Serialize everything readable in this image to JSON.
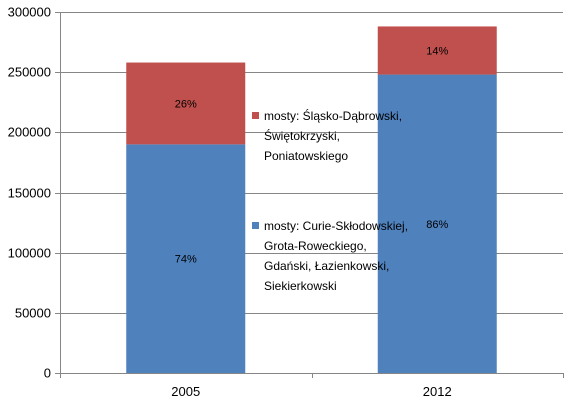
{
  "chart_data": {
    "type": "bar",
    "stacked": true,
    "categories": [
      "2005",
      "2012"
    ],
    "ylim": [
      0,
      300000
    ],
    "yticks": [
      "0",
      "50000",
      "100000",
      "150000",
      "200000",
      "250000",
      "300000"
    ],
    "grid": true,
    "legend_position": "center-right",
    "series": [
      {
        "name": "mosty: Curie-Skłodowskiej,\nGrota-Roweckiego,\nGdański, Łazienkowski,\nSiekierkowski",
        "color": "#4F81BD",
        "values": [
          190000,
          248000
        ],
        "labels": [
          "74%",
          "86%"
        ]
      },
      {
        "name": "mosty: Śląsko-Dąbrowski,\nŚwiętokrzyski,\nPoniatowskiego",
        "color": "#C0504D",
        "values": [
          68000,
          40000
        ],
        "labels": [
          "26%",
          "14%"
        ]
      }
    ]
  }
}
